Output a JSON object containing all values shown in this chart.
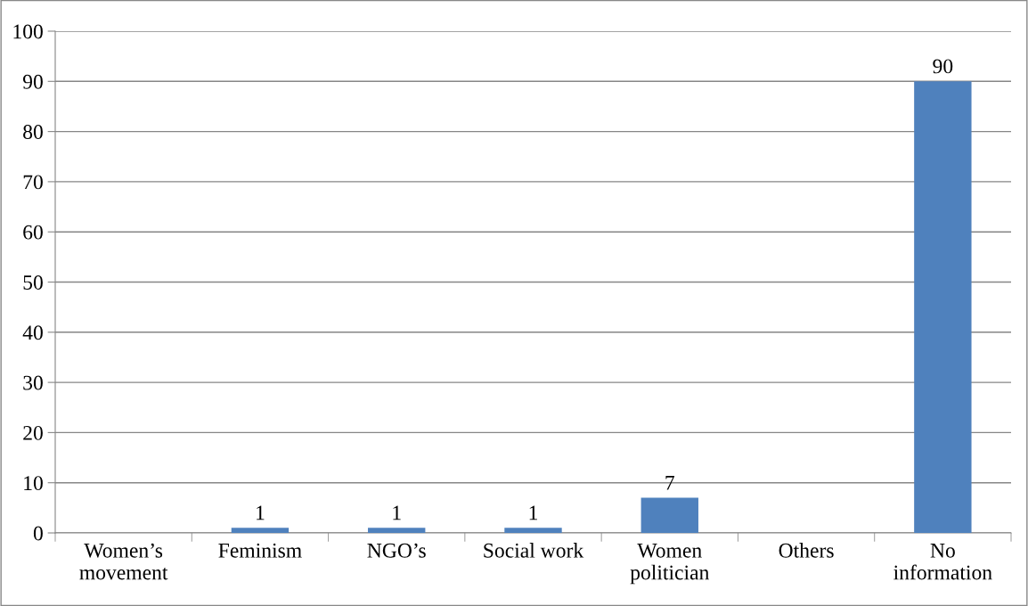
{
  "chart_data": {
    "type": "bar",
    "categories": [
      "Women’s movement",
      "Feminism",
      "NGO’s",
      "Social work",
      "Women politician",
      "Others",
      "No information"
    ],
    "values": [
      0,
      1,
      1,
      1,
      7,
      0,
      90
    ],
    "value_labels": [
      null,
      "1",
      "1",
      "1",
      "7",
      null,
      "90"
    ],
    "color": "#4f81bd",
    "ylim": [
      0,
      100
    ],
    "yticks": [
      0,
      10,
      20,
      30,
      40,
      50,
      60,
      70,
      80,
      90,
      100
    ],
    "grid": "y",
    "legend": false
  }
}
